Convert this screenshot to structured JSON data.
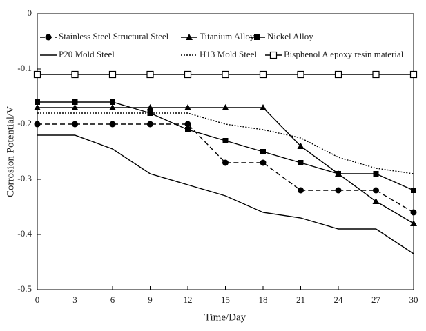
{
  "chart_data": {
    "type": "line",
    "x_label": "Time/Day",
    "y_label": "Corrosion Potential/V",
    "x": [
      0,
      3,
      6,
      9,
      12,
      15,
      18,
      21,
      24,
      27,
      30
    ],
    "xlim": [
      0,
      30
    ],
    "xticks": [
      0,
      3,
      6,
      9,
      12,
      15,
      18,
      21,
      24,
      27,
      30
    ],
    "ylim": [
      -0.5,
      0
    ],
    "yticks": [
      0,
      -0.1,
      -0.2,
      -0.3,
      -0.4,
      -0.5
    ],
    "series": [
      {
        "name": "Stainless Steel Structural Steel",
        "color": "#000000",
        "marker": "circle",
        "dash": "dashed",
        "values": [
          -0.2,
          -0.2,
          -0.2,
          -0.2,
          -0.2,
          -0.27,
          -0.27,
          -0.32,
          -0.32,
          -0.32,
          -0.36
        ]
      },
      {
        "name": "Titanium Alloy",
        "color": "#000000",
        "marker": "triangle",
        "dash": "solid",
        "values": [
          -0.17,
          -0.17,
          -0.17,
          -0.17,
          -0.17,
          -0.17,
          -0.17,
          -0.24,
          -0.29,
          -0.34,
          -0.38
        ]
      },
      {
        "name": "Nickel Alloy",
        "color": "#000000",
        "marker": "square",
        "dash": "solid",
        "values": [
          -0.16,
          -0.16,
          -0.16,
          -0.18,
          -0.21,
          -0.23,
          -0.25,
          -0.27,
          -0.29,
          -0.29,
          -0.32
        ]
      },
      {
        "name": "P20 Mold Steel",
        "color": "#000000",
        "marker": "none",
        "dash": "solid",
        "values": [
          -0.22,
          -0.22,
          -0.245,
          -0.29,
          -0.31,
          -0.33,
          -0.36,
          -0.37,
          -0.39,
          -0.39,
          -0.435
        ]
      },
      {
        "name": "H13 Mold Steel",
        "color": "#000000",
        "marker": "none",
        "dash": "dotted",
        "values": [
          -0.18,
          -0.18,
          -0.18,
          -0.18,
          -0.18,
          -0.2,
          -0.21,
          -0.225,
          -0.26,
          -0.28,
          -0.29
        ]
      },
      {
        "name": "Bisphenol A epoxy resin material",
        "color": "#000000",
        "marker": "open-square",
        "dash": "solid",
        "values": [
          -0.11,
          -0.11,
          -0.11,
          -0.11,
          -0.11,
          -0.11,
          -0.11,
          -0.11,
          -0.11,
          -0.11,
          -0.11
        ]
      }
    ]
  }
}
